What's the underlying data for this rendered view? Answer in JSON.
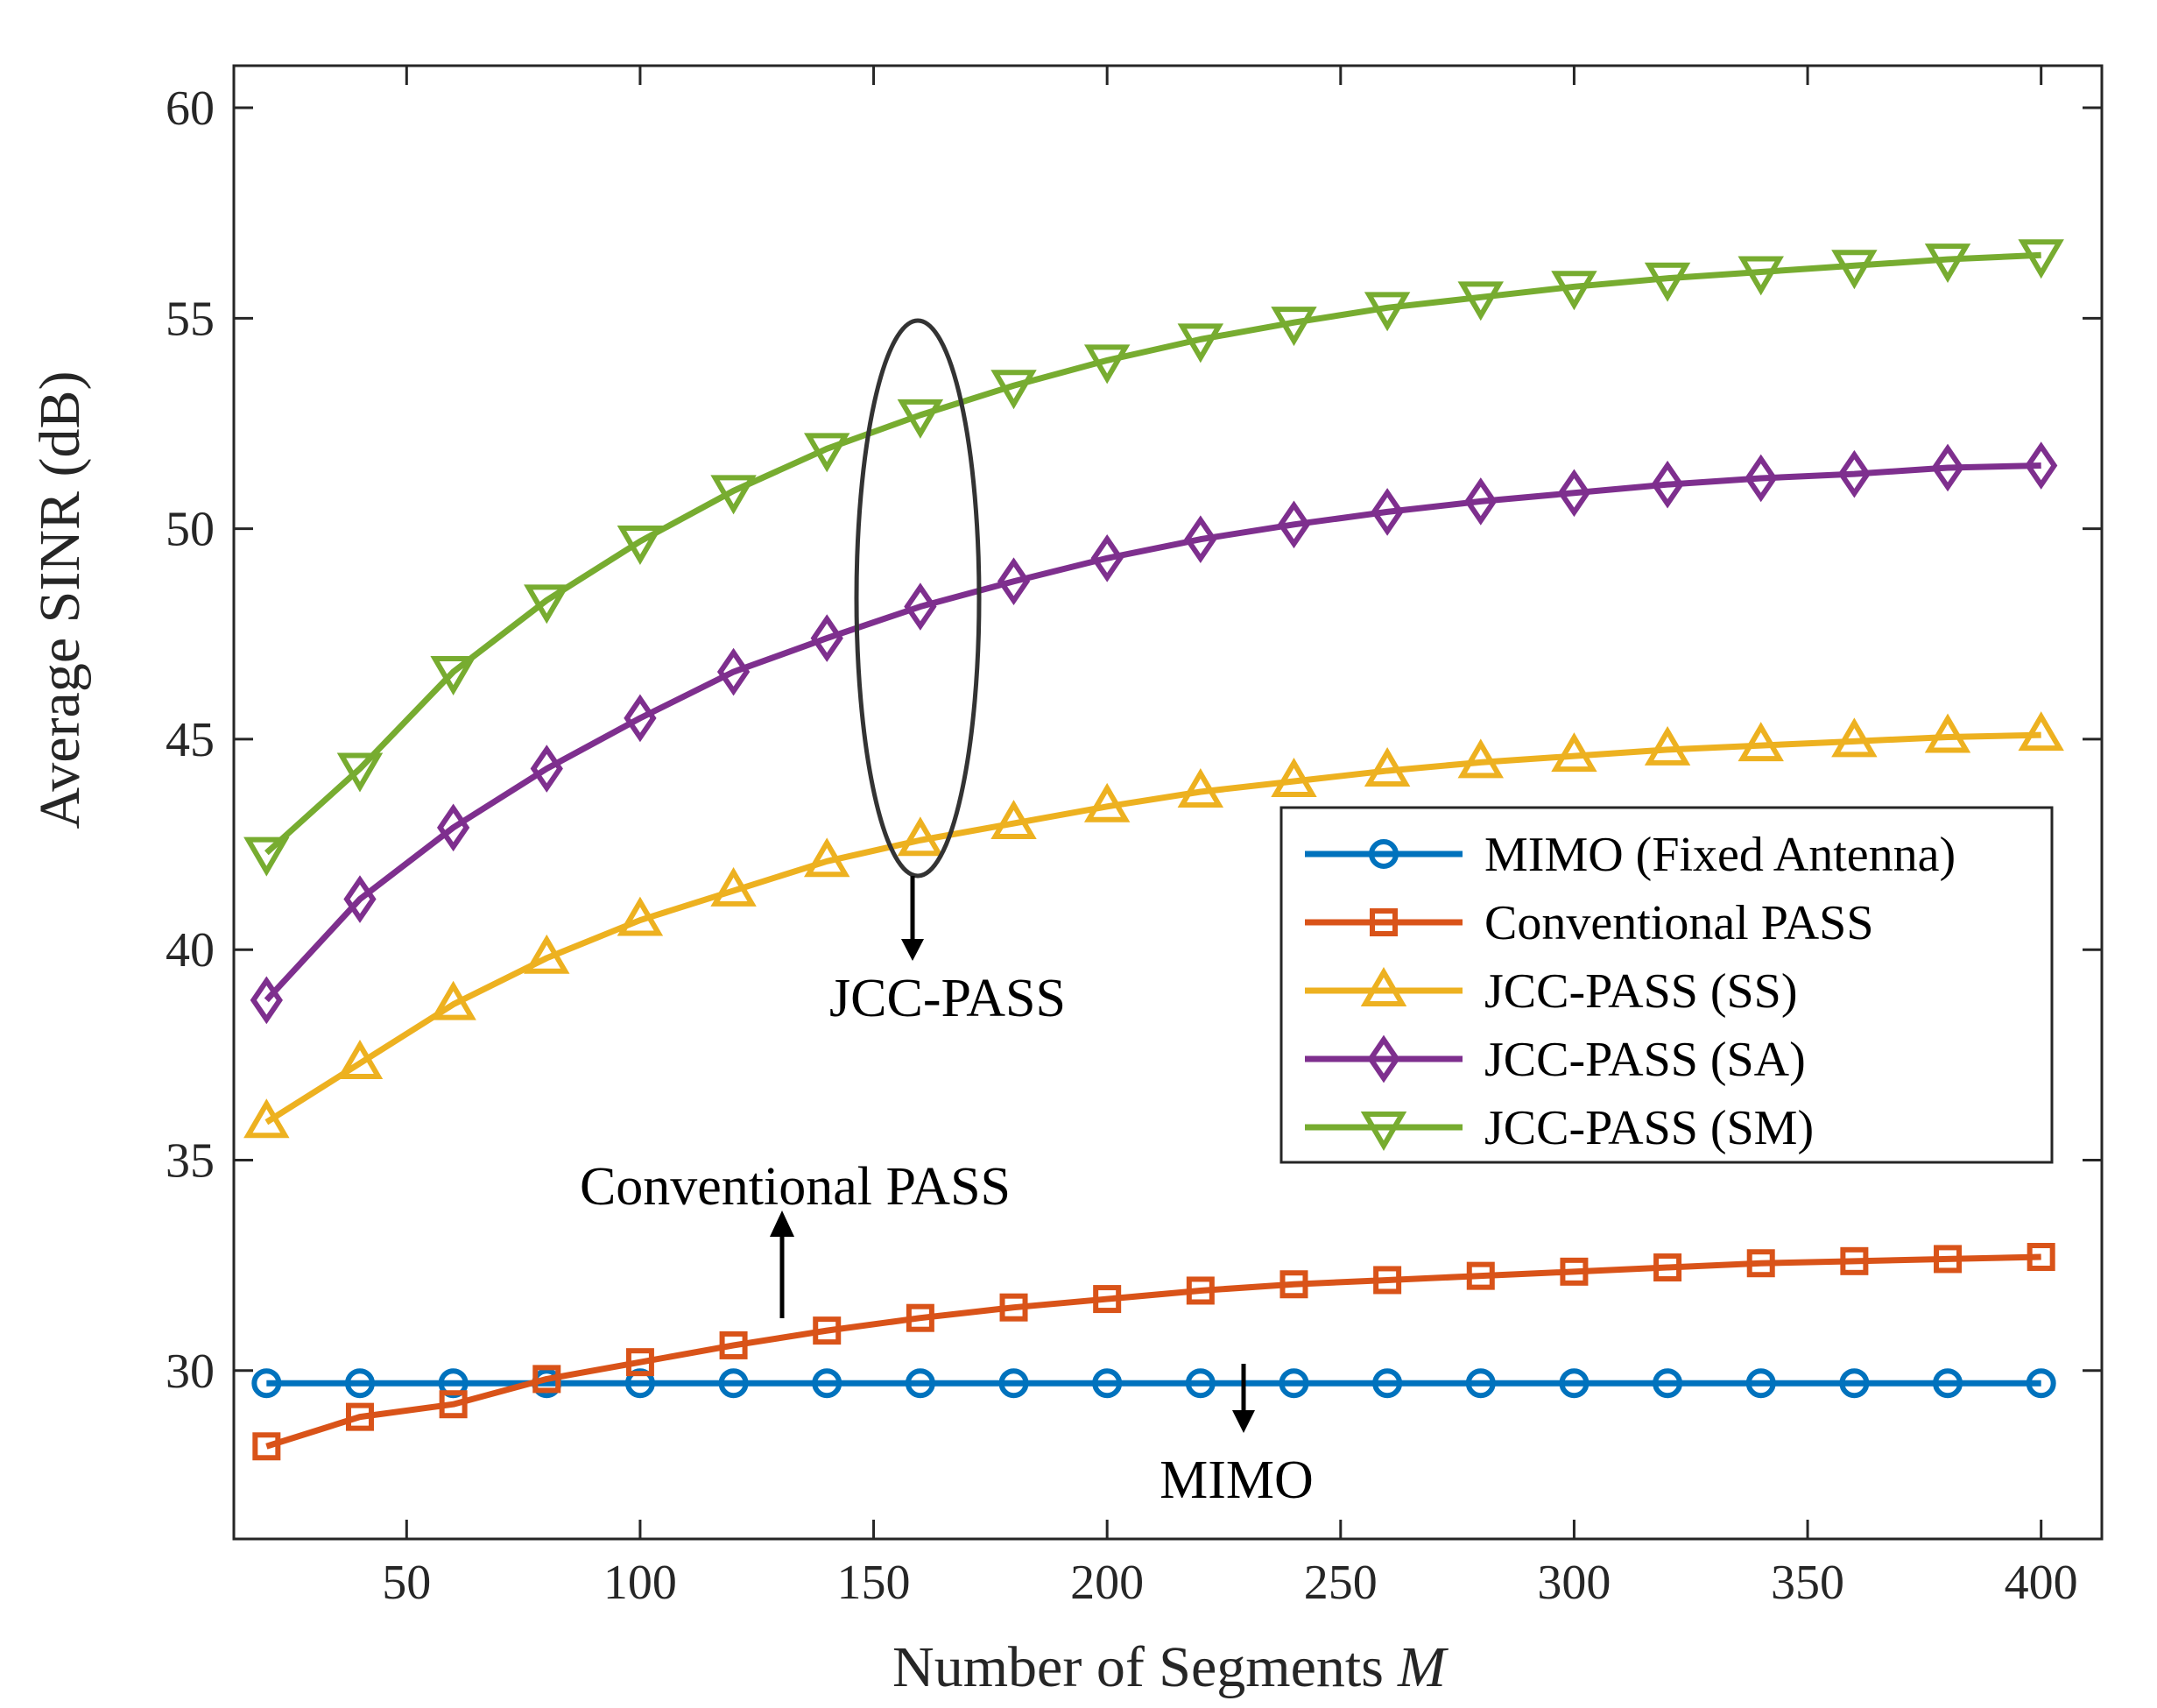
{
  "chart_data": {
    "type": "line",
    "xlabel": "Number of Segments",
    "xlabel_symbol": "M",
    "ylabel": "Average SINR (dB)",
    "xlim": [
      13,
      413
    ],
    "ylim": [
      26,
      61
    ],
    "xticks": [
      50,
      100,
      150,
      200,
      250,
      300,
      350,
      400
    ],
    "yticks": [
      30,
      35,
      40,
      45,
      50,
      55,
      60
    ],
    "x": [
      20,
      40,
      60,
      80,
      100,
      120,
      140,
      160,
      180,
      200,
      220,
      240,
      260,
      280,
      300,
      320,
      340,
      360,
      380,
      400
    ],
    "series": [
      {
        "name": "MIMO (Fixed Antenna)",
        "color": "#0072BD",
        "marker": "circle",
        "values": [
          29.7,
          29.7,
          29.7,
          29.7,
          29.7,
          29.7,
          29.7,
          29.7,
          29.7,
          29.7,
          29.7,
          29.7,
          29.7,
          29.7,
          29.7,
          29.7,
          29.7,
          29.7,
          29.7,
          29.7
        ]
      },
      {
        "name": "Conventional PASS",
        "color": "#D95319",
        "marker": "square",
        "values": [
          28.2,
          28.9,
          29.2,
          29.8,
          30.2,
          30.6,
          30.95,
          31.25,
          31.5,
          31.7,
          31.9,
          32.05,
          32.15,
          32.25,
          32.35,
          32.45,
          32.55,
          32.6,
          32.65,
          32.7
        ]
      },
      {
        "name": "JCC-PASS (SS)",
        "color": "#EDB120",
        "marker": "triangle-up",
        "values": [
          35.9,
          37.3,
          38.7,
          39.8,
          40.7,
          41.4,
          42.1,
          42.6,
          43.0,
          43.4,
          43.75,
          44.0,
          44.25,
          44.45,
          44.6,
          44.75,
          44.85,
          44.95,
          45.05,
          45.1
        ]
      },
      {
        "name": "JCC-PASS (SA)",
        "color": "#7E2F8E",
        "marker": "diamond",
        "values": [
          38.8,
          41.2,
          42.9,
          44.3,
          45.5,
          46.6,
          47.4,
          48.15,
          48.75,
          49.3,
          49.75,
          50.1,
          50.4,
          50.65,
          50.85,
          51.05,
          51.2,
          51.3,
          51.45,
          51.5
        ]
      },
      {
        "name": "JCC-PASS (SM)",
        "color": "#77AC30",
        "marker": "triangle-down",
        "values": [
          42.3,
          44.3,
          46.6,
          48.3,
          49.7,
          50.9,
          51.9,
          52.7,
          53.4,
          54.0,
          54.5,
          54.9,
          55.25,
          55.5,
          55.75,
          55.95,
          56.1,
          56.25,
          56.4,
          56.5
        ]
      }
    ],
    "legend_position": "center-right",
    "annotations": [
      {
        "text": "JCC-PASS"
      },
      {
        "text": "Conventional PASS"
      },
      {
        "text": "MIMO"
      }
    ]
  }
}
